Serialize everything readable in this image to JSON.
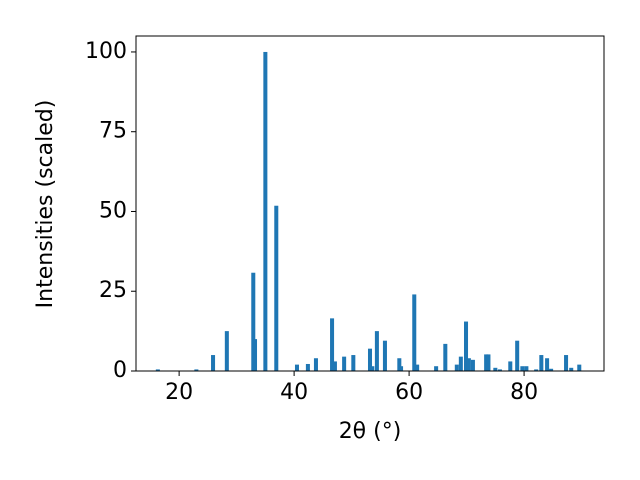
{
  "chart_data": {
    "type": "bar",
    "xlabel": "2θ (°)",
    "ylabel": "Intensities (scaled)",
    "x": [
      16.3,
      23.0,
      25.9,
      28.3,
      32.9,
      33.2,
      35.0,
      36.9,
      40.5,
      42.4,
      43.8,
      46.6,
      47.1,
      48.7,
      50.3,
      53.2,
      53.6,
      54.4,
      55.8,
      58.3,
      58.6,
      60.9,
      61.4,
      64.7,
      66.3,
      68.3,
      69.0,
      69.9,
      70.4,
      71.1,
      73.4,
      73.8,
      75.0,
      75.8,
      77.6,
      78.8,
      79.7,
      80.4,
      82.1,
      83.0,
      84.0,
      84.7,
      87.3,
      88.2,
      89.6
    ],
    "values": [
      0.5,
      0.5,
      5,
      12.5,
      30.8,
      10,
      100,
      51.8,
      2,
      2.2,
      4,
      16.5,
      3,
      4.5,
      5,
      7,
      1.5,
      12.5,
      9.5,
      4,
      1.5,
      24,
      2,
      1.5,
      8.5,
      2,
      4.5,
      15.5,
      4,
      3.5,
      5.2,
      5.2,
      1,
      0.5,
      3,
      9.5,
      1.5,
      1.5,
      0.5,
      5,
      4,
      0.7,
      5,
      1,
      2
    ],
    "color": "#1f77b4",
    "xlim": [
      12.5,
      93.9
    ],
    "xticks": [
      20,
      40,
      60,
      80
    ],
    "ylim": [
      0,
      105
    ],
    "yticks": [
      0,
      25,
      50,
      75,
      100
    ]
  }
}
